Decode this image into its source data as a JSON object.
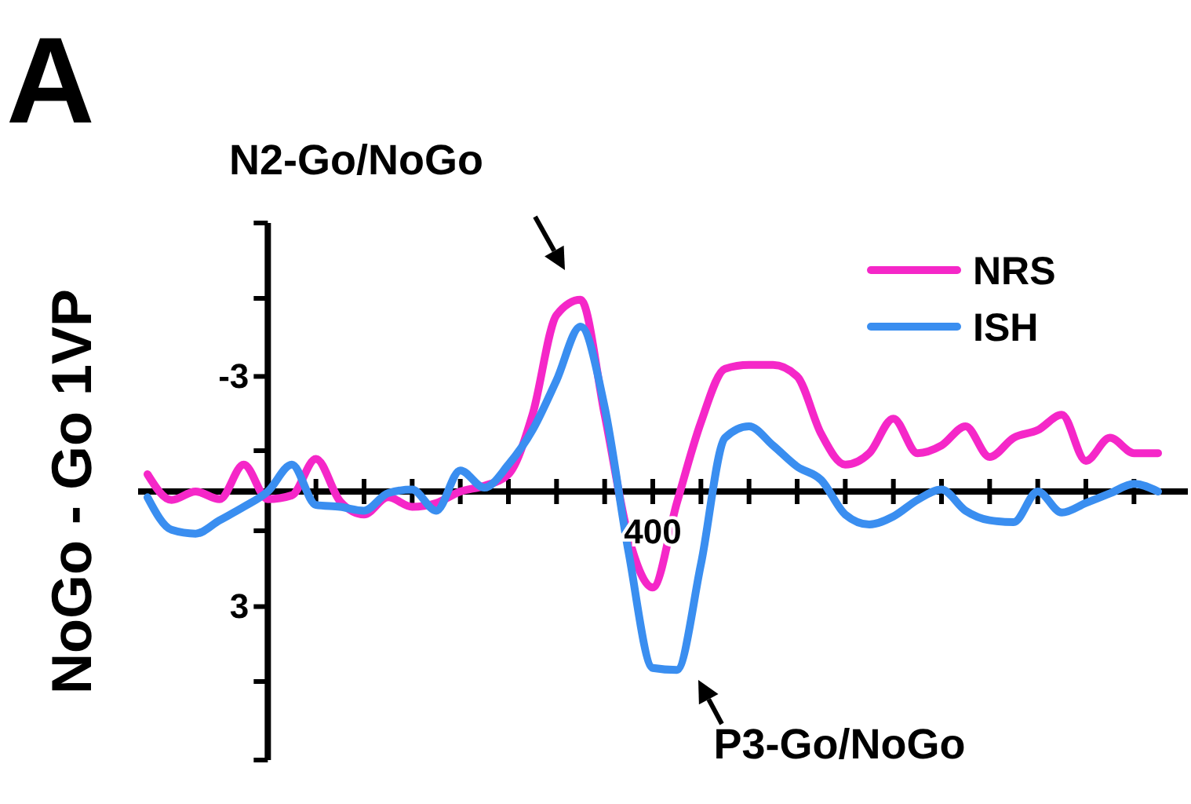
{
  "chart_data": {
    "type": "line",
    "title": "A",
    "ylabel": "NoGo - Go 1VP",
    "categories": [
      null,
      null,
      null,
      null,
      null,
      null,
      null,
      null,
      null,
      null,
      null,
      null,
      null,
      null,
      null,
      null,
      null,
      null,
      null,
      null,
      null,
      null,
      null,
      null,
      null,
      null,
      null,
      null,
      null,
      null,
      null,
      null,
      null,
      null,
      null,
      null,
      null,
      null,
      null,
      null,
      null,
      null,
      null
    ],
    "ylim": [
      7,
      -7
    ],
    "yticks": [
      -3,
      3
    ],
    "grid": false,
    "legend": "top right",
    "marker": "none",
    "line_style": "solid",
    "annotations": [
      "400",
      "N2-Go/NoGo",
      "P3-Go/NoGo"
    ],
    "series": [
      {
        "name": "NRS",
        "color": "#f527c8",
        "values": [
          -0.45,
          0.22,
          0.0,
          0.2,
          -0.7,
          0.2,
          0.1,
          -0.85,
          0.25,
          0.6,
          0.15,
          0.4,
          0.3,
          0.0,
          -0.15,
          -0.45,
          -2.0,
          -4.6,
          -5.0,
          -2.0,
          1.2,
          2.5,
          0.3,
          -1.8,
          -3.2,
          -3.3,
          -3.3,
          -3.0,
          -1.5,
          -0.7,
          -1.0,
          -1.9,
          -1.0,
          -1.2,
          -1.7,
          -0.9,
          -1.4,
          -1.6,
          -2.0,
          -0.8,
          -1.4,
          -1.0,
          -1.0
        ]
      },
      {
        "name": "ISH",
        "color": "#3a8ef0",
        "values": [
          0.15,
          1.0,
          1.1,
          0.75,
          0.4,
          0.0,
          -0.7,
          0.35,
          0.4,
          0.5,
          0.04,
          -0.05,
          0.5,
          -0.55,
          -0.1,
          -0.7,
          -1.6,
          -2.9,
          -4.3,
          -2.2,
          1.6,
          4.6,
          4.65,
          1.9,
          -1.4,
          -1.7,
          -1.2,
          -0.65,
          -0.3,
          0.6,
          0.86,
          0.65,
          0.22,
          -0.05,
          0.5,
          0.75,
          0.8,
          0.0,
          0.55,
          0.3,
          0.05,
          -0.2,
          0.0
        ]
      }
    ]
  }
}
